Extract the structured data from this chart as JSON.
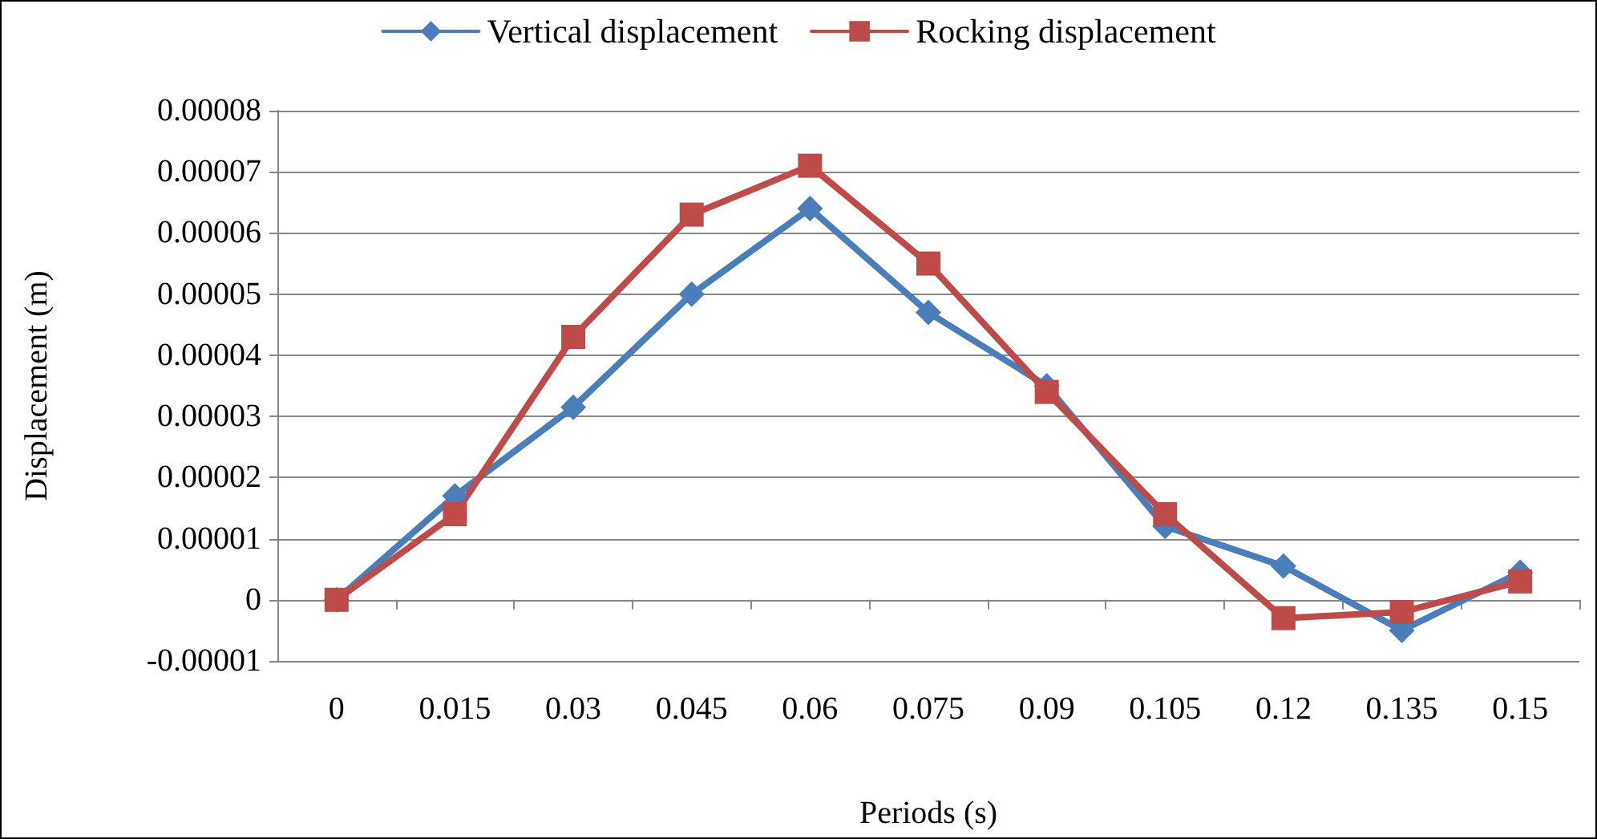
{
  "chart_data": {
    "type": "line",
    "xlabel": "Periods (s)",
    "ylabel": "Displacement (m)",
    "categories": [
      "0",
      "0.015",
      "0.03",
      "0.045",
      "0.06",
      "0.075",
      "0.09",
      "0.105",
      "0.12",
      "0.135",
      "0.15"
    ],
    "series": [
      {
        "name": "Vertical displacement",
        "color": "#4a7ebb",
        "marker": "diamond",
        "values": [
          0,
          1.7e-05,
          3.15e-05,
          5e-05,
          6.4e-05,
          4.7e-05,
          3.5e-05,
          1.2e-05,
          5.5e-06,
          -5e-06,
          4.5e-06
        ]
      },
      {
        "name": "Rocking displacement",
        "color": "#be4b48",
        "marker": "square",
        "values": [
          0,
          1.4e-05,
          4.3e-05,
          6.3e-05,
          7.1e-05,
          5.5e-05,
          3.4e-05,
          1.4e-05,
          -3e-06,
          -2e-06,
          3e-06
        ]
      }
    ],
    "ylim": [
      -1e-05,
      8e-05
    ],
    "yticks": [
      {
        "value": -1e-05,
        "label": "-0.00001"
      },
      {
        "value": 0,
        "label": "0"
      },
      {
        "value": 1e-05,
        "label": "0.00001"
      },
      {
        "value": 2e-05,
        "label": "0.00002"
      },
      {
        "value": 3e-05,
        "label": "0.00003"
      },
      {
        "value": 4e-05,
        "label": "0.00004"
      },
      {
        "value": 5e-05,
        "label": "0.00005"
      },
      {
        "value": 6e-05,
        "label": "0.00006"
      },
      {
        "value": 7e-05,
        "label": "0.00007"
      },
      {
        "value": 8e-05,
        "label": "0.00008"
      }
    ],
    "grid": "y",
    "legend": "top",
    "line_style": "solid"
  }
}
